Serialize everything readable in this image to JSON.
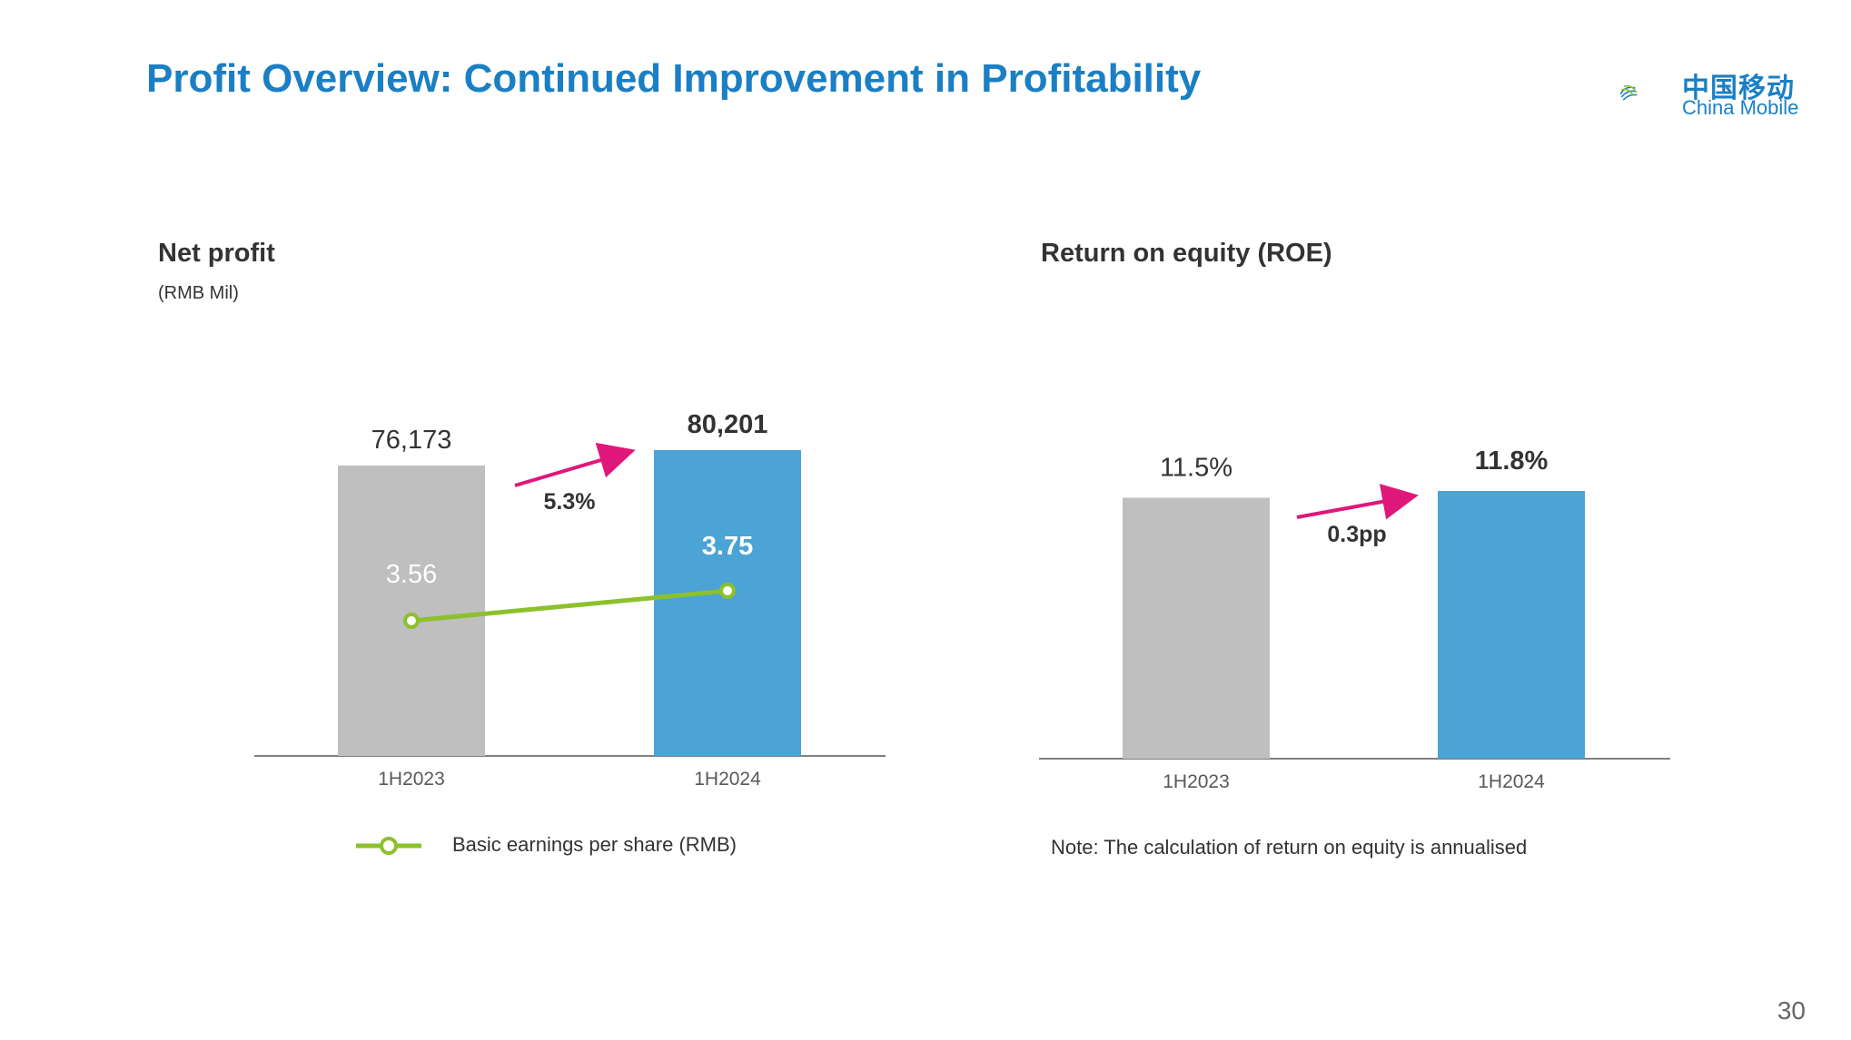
{
  "header": {
    "title": "Profit Overview: Continued Improvement in Profitability",
    "logo_cn": "中国移动",
    "logo_en": "China Mobile"
  },
  "colors": {
    "title": "#1a7fc4",
    "bar_prior": "#bfbfbf",
    "bar_current": "#4ba3d6",
    "eps_line": "#8cc12b",
    "growth_arrow": "#e0177a",
    "text": "#333333"
  },
  "left_panel": {
    "title": "Net profit",
    "unit": "(RMB Mil)",
    "growth_label": "5.3%",
    "legend_label": "Basic earnings per share (RMB)"
  },
  "right_panel": {
    "title": "Return on equity (ROE)",
    "growth_label": "0.3pp",
    "note": "Note: The calculation of return on equity is annualised"
  },
  "page_number": "30",
  "chart_data": [
    {
      "type": "bar",
      "title": "Net profit",
      "unit": "(RMB Mil)",
      "categories": [
        "1H2023",
        "1H2024"
      ],
      "series": [
        {
          "values": [
            76173,
            80201
          ],
          "labels": [
            "76,173",
            "80,201"
          ]
        },
        {
          "name": "Basic earnings per share (RMB)",
          "type": "line",
          "values": [
            3.56,
            3.75
          ],
          "labels": [
            "3.56",
            "3.75"
          ]
        }
      ],
      "annotation": "5.3%",
      "ylim": [
        0,
        80201
      ]
    },
    {
      "type": "bar",
      "title": "Return on equity (ROE)",
      "categories": [
        "1H2023",
        "1H2024"
      ],
      "series": [
        {
          "values": [
            11.5,
            11.8
          ],
          "labels": [
            "11.5%",
            "11.8%"
          ]
        }
      ],
      "annotation": "0.3pp",
      "ylim": [
        0,
        11.8
      ]
    }
  ]
}
